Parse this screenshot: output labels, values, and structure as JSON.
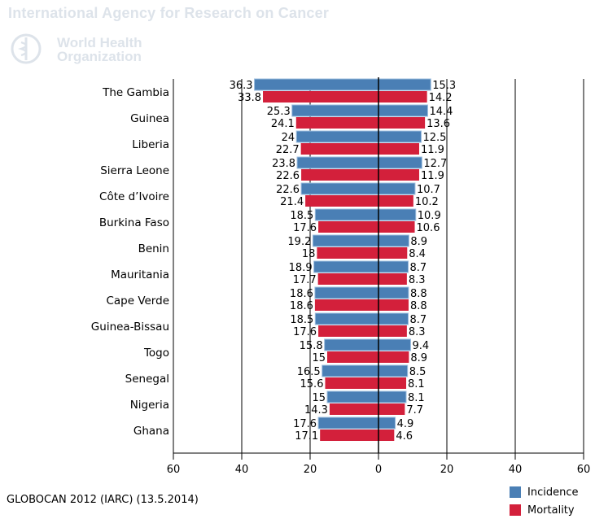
{
  "header": {
    "agency": "International Agency for Research on Cancer",
    "who_line1": "World Health",
    "who_line2": "Organization"
  },
  "source": "GLOBOCAN 2012 (IARC) (13.5.2014)",
  "colors": {
    "incidence": "#4a7fb5",
    "mortality": "#d3203b",
    "axis": "#000000"
  },
  "chart_data": {
    "type": "bar",
    "orientation": "horizontal-back-to-back",
    "categories": [
      "The Gambia",
      "Guinea",
      "Liberia",
      "Sierra Leone",
      "Côte d’Ivoire",
      "Burkina Faso",
      "Benin",
      "Mauritania",
      "Cape Verde",
      "Guinea-Bissau",
      "Togo",
      "Senegal",
      "Nigeria",
      "Ghana"
    ],
    "series": [
      {
        "name": "Incidence",
        "side": "left",
        "values": [
          36.3,
          25.3,
          24,
          23.8,
          22.6,
          18.5,
          19.2,
          18.9,
          18.6,
          18.5,
          15.8,
          16.5,
          15,
          17.6
        ]
      },
      {
        "name": "Mortality",
        "side": "left",
        "values": [
          33.8,
          24.1,
          22.7,
          22.6,
          21.4,
          17.6,
          18,
          17.7,
          18.6,
          17.6,
          15,
          15.6,
          14.3,
          17.1
        ]
      },
      {
        "name": "Incidence",
        "side": "right",
        "values": [
          15.3,
          14.4,
          12.5,
          12.7,
          10.7,
          10.9,
          8.9,
          8.7,
          8.8,
          8.7,
          9.4,
          8.5,
          8.1,
          4.9
        ]
      },
      {
        "name": "Mortality",
        "side": "right",
        "values": [
          14.2,
          13.6,
          11.9,
          11.9,
          10.2,
          10.6,
          8.4,
          8.3,
          8.8,
          8.3,
          8.9,
          8.1,
          7.7,
          4.6
        ]
      }
    ],
    "left_labels": [
      [
        "36.3",
        "33.8"
      ],
      [
        "25.3",
        "24.1"
      ],
      [
        "24",
        "22.7"
      ],
      [
        "23.8",
        "22.6"
      ],
      [
        "22.6",
        "21.4"
      ],
      [
        "18.5",
        "17.6"
      ],
      [
        "19.2",
        "18"
      ],
      [
        "18.9",
        "17.7"
      ],
      [
        "18.6",
        "18.6"
      ],
      [
        "18.5",
        "17.6"
      ],
      [
        "15.8",
        "15"
      ],
      [
        "16.5",
        "15.6"
      ],
      [
        "15",
        "14.3"
      ],
      [
        "17.6",
        "17.1"
      ]
    ],
    "right_labels": [
      [
        "15.3",
        "14.2"
      ],
      [
        "14.4",
        "13.6"
      ],
      [
        "12.5",
        "11.9"
      ],
      [
        "12.7",
        "11.9"
      ],
      [
        "10.7",
        "10.2"
      ],
      [
        "10.9",
        "10.6"
      ],
      [
        "8.9",
        "8.4"
      ],
      [
        "8.7",
        "8.3"
      ],
      [
        "8.8",
        "8.8"
      ],
      [
        "8.7",
        "8.3"
      ],
      [
        "9.4",
        "8.9"
      ],
      [
        "8.5",
        "8.1"
      ],
      [
        "8.1",
        "7.7"
      ],
      [
        "4.9",
        "4.6"
      ]
    ],
    "x_ticks": [
      "60",
      "40",
      "20",
      "0",
      "20",
      "40",
      "60"
    ],
    "x_tick_values": [
      -60,
      -40,
      -20,
      0,
      20,
      40,
      60
    ],
    "xlim": [
      -60,
      60
    ],
    "grid": true,
    "legend": {
      "position": "bottom-right",
      "items": [
        "Incidence",
        "Mortality"
      ]
    }
  }
}
